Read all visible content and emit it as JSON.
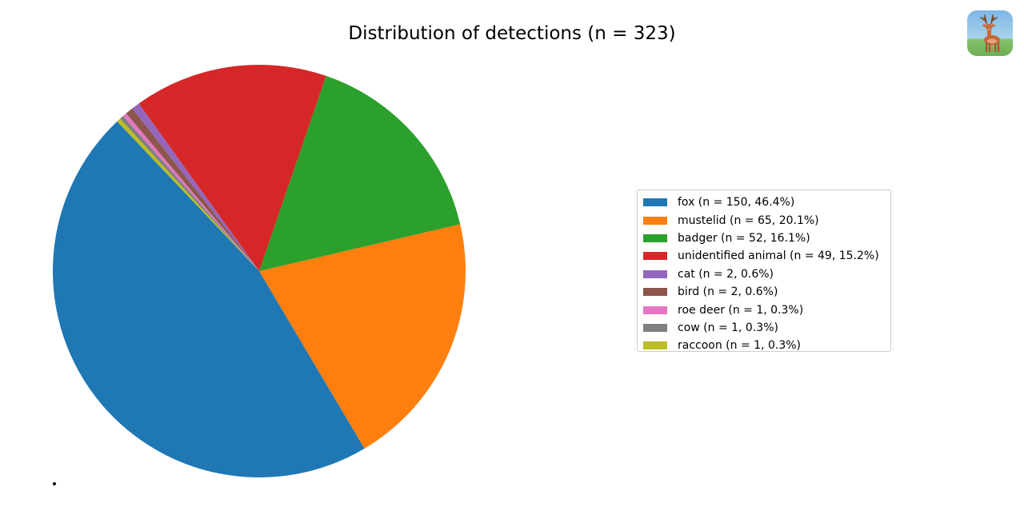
{
  "chart_data": {
    "type": "pie",
    "title": "Distribution of detections (n = 323)",
    "total": 323,
    "start_angle_deg": 133.5,
    "direction": "counterclockwise",
    "legend_position": "right",
    "slices": [
      {
        "label": "fox",
        "value": 150,
        "percent": 46.4,
        "legend": "fox (n = 150, 46.4%)",
        "color": "#1f77b4"
      },
      {
        "label": "mustelid",
        "value": 65,
        "percent": 20.1,
        "legend": "mustelid (n = 65, 20.1%)",
        "color": "#ff7f0e"
      },
      {
        "label": "badger",
        "value": 52,
        "percent": 16.1,
        "legend": "badger (n = 52, 16.1%)",
        "color": "#2ca02c"
      },
      {
        "label": "unidentified animal",
        "value": 49,
        "percent": 15.2,
        "legend": "unidentified animal (n = 49, 15.2%)",
        "color": "#d62728"
      },
      {
        "label": "cat",
        "value": 2,
        "percent": 0.6,
        "legend": "cat (n = 2, 0.6%)",
        "color": "#9467bd"
      },
      {
        "label": "bird",
        "value": 2,
        "percent": 0.6,
        "legend": "bird (n = 2, 0.6%)",
        "color": "#8c564b"
      },
      {
        "label": "roe deer",
        "value": 1,
        "percent": 0.3,
        "legend": "roe deer (n = 1, 0.3%)",
        "color": "#e377c2"
      },
      {
        "label": "cow",
        "value": 1,
        "percent": 0.3,
        "legend": "cow (n = 1, 0.3%)",
        "color": "#7f7f7f"
      },
      {
        "label": "raccoon",
        "value": 1,
        "percent": 0.3,
        "legend": "raccoon (n = 1, 0.3%)",
        "color": "#bcbd22"
      }
    ]
  },
  "app_icon": {
    "icon": "deer-icon",
    "colors": {
      "sky": "#8fc3e8",
      "grass": "#86c06a",
      "deer": "#c8683a"
    }
  }
}
